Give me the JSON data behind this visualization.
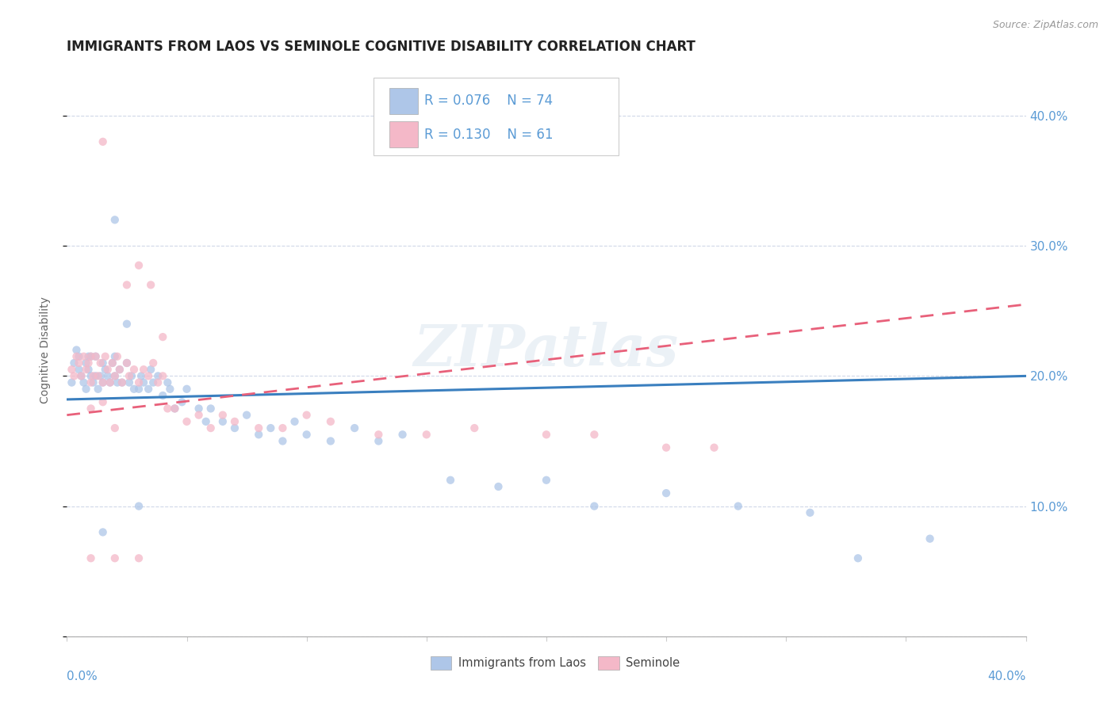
{
  "title": "IMMIGRANTS FROM LAOS VS SEMINOLE COGNITIVE DISABILITY CORRELATION CHART",
  "source_text": "Source: ZipAtlas.com",
  "ylabel": "Cognitive Disability",
  "color_blue": "#AEC6E8",
  "color_pink": "#F4B8C8",
  "color_blue_line": "#3A7FBF",
  "color_pink_line": "#E8607A",
  "color_axis_text": "#5B9BD5",
  "color_title": "#222222",
  "xlim": [
    0.0,
    0.4
  ],
  "ylim": [
    0.0,
    0.44
  ],
  "ytick_values": [
    0.0,
    0.1,
    0.2,
    0.3,
    0.4
  ],
  "ytick_labels": [
    "",
    "10.0%",
    "20.0%",
    "30.0%",
    "40.0%"
  ],
  "xtick_values": [
    0.0,
    0.05,
    0.1,
    0.15,
    0.2,
    0.25,
    0.3,
    0.35,
    0.4
  ],
  "legend_r1": "0.076",
  "legend_n1": "74",
  "legend_r2": "0.130",
  "legend_n2": "61",
  "blue_x": [
    0.002,
    0.003,
    0.004,
    0.005,
    0.005,
    0.006,
    0.007,
    0.008,
    0.008,
    0.009,
    0.009,
    0.01,
    0.01,
    0.011,
    0.012,
    0.012,
    0.013,
    0.014,
    0.015,
    0.015,
    0.016,
    0.017,
    0.018,
    0.019,
    0.02,
    0.02,
    0.021,
    0.022,
    0.023,
    0.025,
    0.026,
    0.027,
    0.028,
    0.03,
    0.031,
    0.032,
    0.034,
    0.035,
    0.036,
    0.038,
    0.04,
    0.042,
    0.043,
    0.045,
    0.048,
    0.05,
    0.055,
    0.058,
    0.06,
    0.065,
    0.07,
    0.075,
    0.08,
    0.085,
    0.09,
    0.095,
    0.1,
    0.11,
    0.12,
    0.13,
    0.14,
    0.16,
    0.18,
    0.2,
    0.22,
    0.25,
    0.28,
    0.31,
    0.33,
    0.36,
    0.025,
    0.015,
    0.02,
    0.03
  ],
  "blue_y": [
    0.195,
    0.21,
    0.22,
    0.205,
    0.215,
    0.2,
    0.195,
    0.21,
    0.19,
    0.215,
    0.205,
    0.2,
    0.215,
    0.195,
    0.2,
    0.215,
    0.19,
    0.2,
    0.195,
    0.21,
    0.205,
    0.2,
    0.195,
    0.21,
    0.2,
    0.215,
    0.195,
    0.205,
    0.195,
    0.21,
    0.195,
    0.2,
    0.19,
    0.19,
    0.2,
    0.195,
    0.19,
    0.205,
    0.195,
    0.2,
    0.185,
    0.195,
    0.19,
    0.175,
    0.18,
    0.19,
    0.175,
    0.165,
    0.175,
    0.165,
    0.16,
    0.17,
    0.155,
    0.16,
    0.15,
    0.165,
    0.155,
    0.15,
    0.16,
    0.15,
    0.155,
    0.12,
    0.115,
    0.12,
    0.1,
    0.11,
    0.1,
    0.095,
    0.06,
    0.075,
    0.24,
    0.08,
    0.32,
    0.1
  ],
  "pink_x": [
    0.002,
    0.003,
    0.004,
    0.005,
    0.006,
    0.007,
    0.008,
    0.009,
    0.01,
    0.01,
    0.011,
    0.012,
    0.013,
    0.014,
    0.015,
    0.016,
    0.017,
    0.018,
    0.019,
    0.02,
    0.021,
    0.022,
    0.023,
    0.025,
    0.026,
    0.028,
    0.03,
    0.032,
    0.034,
    0.036,
    0.038,
    0.04,
    0.042,
    0.045,
    0.05,
    0.055,
    0.06,
    0.065,
    0.07,
    0.08,
    0.09,
    0.1,
    0.11,
    0.13,
    0.15,
    0.17,
    0.2,
    0.22,
    0.25,
    0.27,
    0.01,
    0.015,
    0.02,
    0.025,
    0.03,
    0.035,
    0.04,
    0.015,
    0.01,
    0.02,
    0.03
  ],
  "pink_y": [
    0.205,
    0.2,
    0.215,
    0.21,
    0.2,
    0.215,
    0.205,
    0.21,
    0.195,
    0.215,
    0.2,
    0.215,
    0.2,
    0.21,
    0.195,
    0.215,
    0.205,
    0.195,
    0.21,
    0.2,
    0.215,
    0.205,
    0.195,
    0.21,
    0.2,
    0.205,
    0.195,
    0.205,
    0.2,
    0.21,
    0.195,
    0.2,
    0.175,
    0.175,
    0.165,
    0.17,
    0.16,
    0.17,
    0.165,
    0.16,
    0.16,
    0.17,
    0.165,
    0.155,
    0.155,
    0.16,
    0.155,
    0.155,
    0.145,
    0.145,
    0.175,
    0.18,
    0.16,
    0.27,
    0.285,
    0.27,
    0.23,
    0.38,
    0.06,
    0.06,
    0.06
  ]
}
